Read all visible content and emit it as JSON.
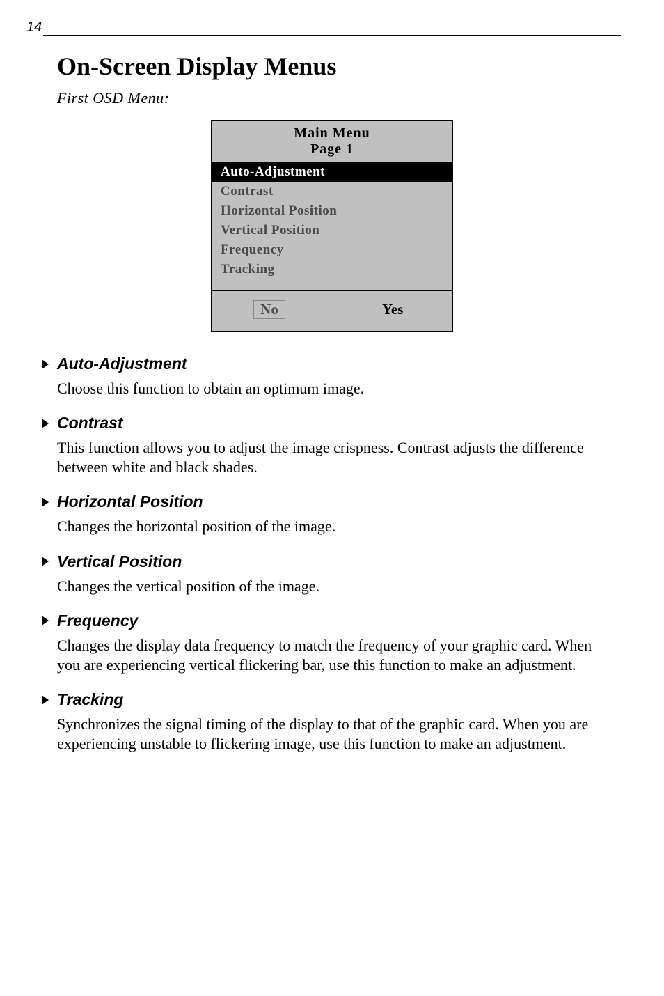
{
  "page_number": "14",
  "heading": "On-Screen Display Menus",
  "subheading": "First OSD Menu:",
  "osd": {
    "title_line1": "Main Menu",
    "title_line2": "Page 1",
    "items": [
      {
        "label": "Auto-Adjustment",
        "selected": true
      },
      {
        "label": "Contrast",
        "selected": false
      },
      {
        "label": "Horizontal Position",
        "selected": false
      },
      {
        "label": "Vertical Position",
        "selected": false
      },
      {
        "label": "Frequency",
        "selected": false
      },
      {
        "label": "Tracking",
        "selected": false
      }
    ],
    "footer_no": "No",
    "footer_yes": "Yes",
    "colors": {
      "panel_bg": "#c0c0c0",
      "selected_bg": "#000000",
      "selected_fg": "#ffffff",
      "item_fg": "#4a4a4a",
      "border": "#000000"
    }
  },
  "sections": [
    {
      "title": "Auto-Adjustment",
      "body": "Choose this function to obtain an optimum image."
    },
    {
      "title": "Contrast",
      "body": "This function allows you to adjust the image crispness. Contrast adjusts the difference between white and black shades."
    },
    {
      "title": "Horizontal Position",
      "body": "Changes the horizontal position of the image."
    },
    {
      "title": "Vertical Position",
      "body": "Changes the vertical position of  the image."
    },
    {
      "title": "Frequency",
      "body": "Changes the display data frequency to match the frequency of your graphic card. When you are experiencing vertical flickering bar, use this function to make an adjustment."
    },
    {
      "title": "Tracking",
      "body": "Synchronizes the signal timing of the display to that of the graphic card. When you are experiencing unstable to flickering image, use this function to make an adjustment."
    }
  ]
}
